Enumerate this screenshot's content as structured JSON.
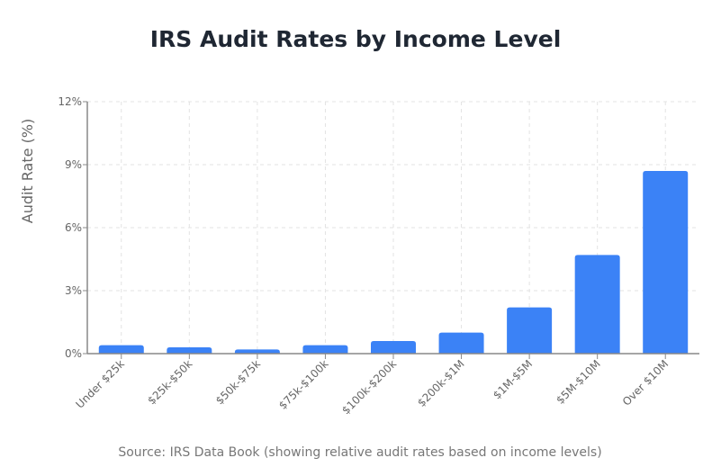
{
  "chart_data": {
    "type": "bar",
    "title": "IRS Audit Rates by Income Level",
    "xlabel": "",
    "ylabel": "Audit Rate (%)",
    "categories": [
      "Under $25k",
      "$25k-$50k",
      "$50k-$75k",
      "$75k-$100k",
      "$100k-$200k",
      "$200k-$1M",
      "$1M-$5M",
      "$5M-$10M",
      "Over $10M"
    ],
    "values": [
      0.4,
      0.3,
      0.2,
      0.4,
      0.6,
      1.0,
      2.2,
      4.7,
      8.7
    ],
    "ylim": [
      0,
      12
    ],
    "yticks": [
      0,
      3,
      6,
      9,
      12
    ],
    "ytick_labels": [
      "0%",
      "3%",
      "6%",
      "9%",
      "12%"
    ],
    "grid": true,
    "bar_color": "#3b82f6",
    "source": "Source: IRS Data Book (showing relative audit rates based on income levels)"
  }
}
